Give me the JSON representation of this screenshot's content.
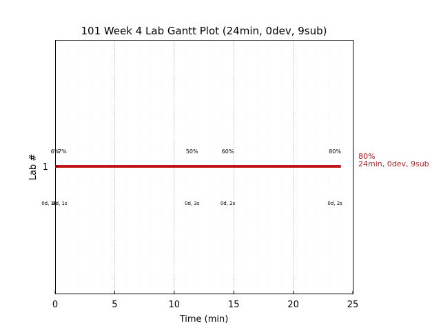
{
  "chart_data": {
    "type": "gantt",
    "title": "101 Week 4 Lab Gantt Plot (24min, 0dev, 9sub)",
    "xlabel": "Time (min)",
    "ylabel": "Lab #",
    "xlim": [
      0,
      25
    ],
    "x_ticks": [
      0,
      5,
      10,
      15,
      20,
      25
    ],
    "x_tick_labels": [
      "0",
      "5",
      "10",
      "15",
      "20",
      "25"
    ],
    "minor_grid_step": 1,
    "y_categories": [
      "1"
    ],
    "bars": [
      {
        "lab": "1",
        "start": 0,
        "end": 24,
        "color": "#c0171c"
      }
    ],
    "percent_labels": [
      {
        "x": 0,
        "text": "6%"
      },
      {
        "x": 0.6,
        "text": "7%"
      },
      {
        "x": 11.5,
        "text": "50%"
      },
      {
        "x": 14.5,
        "text": "60%"
      },
      {
        "x": 23.5,
        "text": "80%"
      }
    ],
    "submission_labels": [
      {
        "x": -0.5,
        "text": "0d, 16"
      },
      {
        "x": 0.4,
        "text": "0d, 1s"
      },
      {
        "x": 11.5,
        "text": "0d, 3s"
      },
      {
        "x": 14.5,
        "text": "0d, 2s"
      },
      {
        "x": 23.5,
        "text": "0d, 2s"
      }
    ],
    "end_annotation": {
      "line1": "80%",
      "line2": "24min, 0dev, 9sub",
      "color": "#c0171c"
    }
  }
}
